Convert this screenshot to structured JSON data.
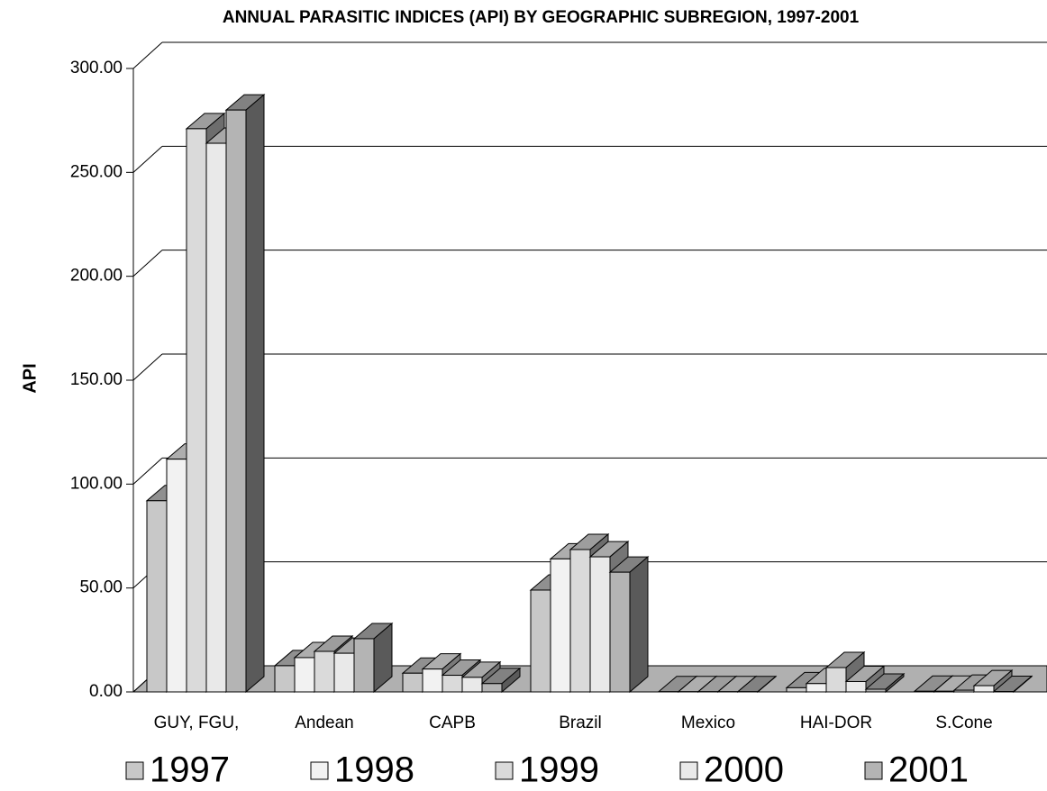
{
  "chart_data": {
    "type": "bar3d",
    "title": "ANNUAL PARASITIC INDICES (API) BY GEOGRAPHIC SUBREGION, 1997-2001",
    "y_label": "API",
    "categories": [
      "GUY, FGU,",
      "Andean",
      "CAPB",
      "Brazil",
      "Mexico",
      "HAI-DOR",
      "S.Cone"
    ],
    "series": [
      {
        "name": "1997",
        "color": "#c8c8c8",
        "values": [
          92,
          12.6,
          9,
          49,
          0.1,
          2,
          0.3
        ]
      },
      {
        "name": "1998",
        "color": "#f2f2f2",
        "values": [
          112,
          16.5,
          11,
          64,
          0.1,
          4,
          0.3
        ]
      },
      {
        "name": "1999",
        "color": "#dadada",
        "values": [
          271,
          19.5,
          8,
          68.5,
          0.1,
          11.7,
          0.8
        ]
      },
      {
        "name": "2000",
        "color": "#e9e9e9",
        "values": [
          264,
          18.6,
          7,
          65,
          0.1,
          5,
          3
        ]
      },
      {
        "name": "2001",
        "color": "#b4b4b4",
        "values": [
          280,
          25.6,
          4,
          57.6,
          0.1,
          1.3,
          0.2
        ]
      }
    ],
    "ylim": [
      0,
      300
    ],
    "yticks": [
      {
        "value": 0,
        "label": "0.00"
      },
      {
        "value": 50,
        "label": "50.00"
      },
      {
        "value": 100,
        "label": "100.00"
      },
      {
        "value": 150,
        "label": "150.00"
      },
      {
        "value": 200,
        "label": "200.00"
      },
      {
        "value": 250,
        "label": "250.00"
      },
      {
        "value": 300,
        "label": "300.00"
      }
    ],
    "grid": true
  }
}
